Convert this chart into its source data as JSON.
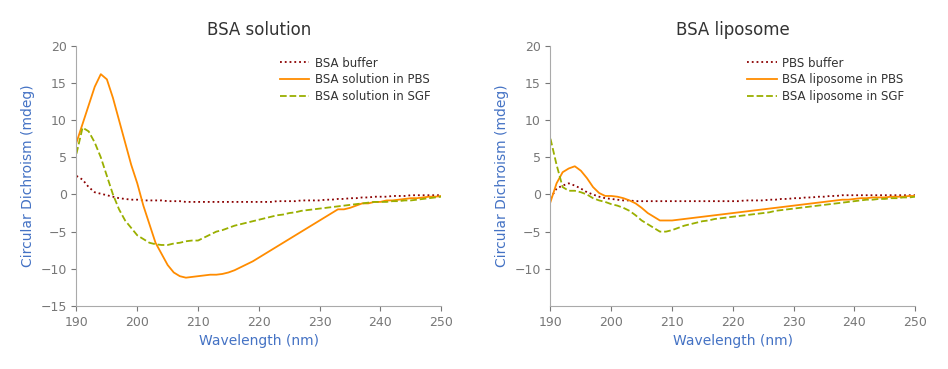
{
  "left_title": "BSA solution",
  "right_title": "BSA liposome",
  "xlabel": "Wavelength (nm)",
  "ylabel": "Circular Dichroism (mdeg)",
  "xlim": [
    190,
    250
  ],
  "left_ylim": [
    -15,
    20
  ],
  "right_ylim": [
    -15,
    20
  ],
  "left_yticks": [
    -15,
    -10,
    -5,
    0,
    5,
    10,
    15,
    20
  ],
  "right_yticks": [
    -10,
    -5,
    0,
    5,
    10,
    15,
    20
  ],
  "xticks": [
    190,
    200,
    210,
    220,
    230,
    240,
    250
  ],
  "left_legend": [
    "BSA buffer",
    "BSA solution in PBS",
    "BSA solution in SGF"
  ],
  "right_legend": [
    "PBS buffer",
    "BSA liposome in PBS",
    "BSA liposome in SGF"
  ],
  "colors_dotted": "#8B0000",
  "colors_solid": "#FF8C00",
  "colors_dashed": "#9aaf00",
  "left_x": [
    190,
    191,
    192,
    193,
    194,
    195,
    196,
    197,
    198,
    199,
    200,
    201,
    202,
    203,
    204,
    205,
    206,
    207,
    208,
    209,
    210,
    211,
    212,
    213,
    214,
    215,
    216,
    217,
    218,
    219,
    220,
    221,
    222,
    223,
    224,
    225,
    226,
    227,
    228,
    229,
    230,
    231,
    232,
    233,
    234,
    235,
    236,
    237,
    238,
    239,
    240,
    241,
    242,
    243,
    244,
    245,
    246,
    247,
    248,
    249,
    250
  ],
  "left_buffer": [
    2.5,
    2.0,
    1.0,
    0.3,
    0.1,
    -0.1,
    -0.3,
    -0.5,
    -0.6,
    -0.7,
    -0.7,
    -0.8,
    -0.8,
    -0.8,
    -0.8,
    -0.9,
    -0.9,
    -0.9,
    -1.0,
    -1.0,
    -1.0,
    -1.0,
    -1.0,
    -1.0,
    -1.0,
    -1.0,
    -1.0,
    -1.0,
    -1.0,
    -1.0,
    -1.0,
    -1.0,
    -1.0,
    -0.9,
    -0.9,
    -0.9,
    -0.9,
    -0.8,
    -0.8,
    -0.8,
    -0.8,
    -0.7,
    -0.7,
    -0.6,
    -0.6,
    -0.5,
    -0.5,
    -0.4,
    -0.4,
    -0.3,
    -0.3,
    -0.3,
    -0.2,
    -0.2,
    -0.2,
    -0.1,
    -0.1,
    -0.1,
    -0.1,
    -0.1,
    -0.1
  ],
  "left_pbs": [
    7.0,
    9.5,
    12.0,
    14.5,
    16.2,
    15.5,
    13.0,
    10.0,
    7.0,
    4.0,
    1.5,
    -1.5,
    -4.0,
    -6.5,
    -8.0,
    -9.5,
    -10.5,
    -11.0,
    -11.2,
    -11.1,
    -11.0,
    -10.9,
    -10.8,
    -10.8,
    -10.7,
    -10.5,
    -10.2,
    -9.8,
    -9.4,
    -9.0,
    -8.5,
    -8.0,
    -7.5,
    -7.0,
    -6.5,
    -6.0,
    -5.5,
    -5.0,
    -4.5,
    -4.0,
    -3.5,
    -3.0,
    -2.5,
    -2.0,
    -2.0,
    -1.8,
    -1.5,
    -1.2,
    -1.2,
    -1.0,
    -1.0,
    -0.8,
    -0.8,
    -0.7,
    -0.6,
    -0.5,
    -0.5,
    -0.4,
    -0.3,
    -0.3,
    -0.2
  ],
  "left_sgf": [
    5.5,
    9.0,
    8.5,
    7.0,
    5.0,
    2.5,
    0.0,
    -2.0,
    -3.5,
    -4.5,
    -5.5,
    -6.0,
    -6.5,
    -6.7,
    -6.8,
    -6.8,
    -6.6,
    -6.5,
    -6.3,
    -6.2,
    -6.2,
    -5.8,
    -5.4,
    -5.0,
    -4.8,
    -4.5,
    -4.2,
    -4.0,
    -3.8,
    -3.6,
    -3.4,
    -3.2,
    -3.0,
    -2.8,
    -2.7,
    -2.5,
    -2.4,
    -2.2,
    -2.1,
    -2.0,
    -1.9,
    -1.8,
    -1.7,
    -1.6,
    -1.5,
    -1.4,
    -1.3,
    -1.2,
    -1.1,
    -1.0,
    -1.0,
    -1.0,
    -0.9,
    -0.9,
    -0.8,
    -0.8,
    -0.7,
    -0.6,
    -0.5,
    -0.4,
    -0.3
  ],
  "right_x": [
    190,
    191,
    192,
    193,
    194,
    195,
    196,
    197,
    198,
    199,
    200,
    201,
    202,
    203,
    204,
    205,
    206,
    207,
    208,
    209,
    210,
    211,
    212,
    213,
    214,
    215,
    216,
    217,
    218,
    219,
    220,
    221,
    222,
    223,
    224,
    225,
    226,
    227,
    228,
    229,
    230,
    231,
    232,
    233,
    234,
    235,
    236,
    237,
    238,
    239,
    240,
    241,
    242,
    243,
    244,
    245,
    246,
    247,
    248,
    249,
    250
  ],
  "right_buffer": [
    -0.5,
    0.8,
    1.2,
    1.5,
    1.2,
    0.8,
    0.3,
    0.0,
    -0.3,
    -0.5,
    -0.6,
    -0.7,
    -0.8,
    -0.8,
    -0.9,
    -0.9,
    -0.9,
    -0.9,
    -0.9,
    -0.9,
    -0.9,
    -0.9,
    -0.9,
    -0.9,
    -0.9,
    -0.9,
    -0.9,
    -0.9,
    -0.9,
    -0.9,
    -0.9,
    -0.9,
    -0.8,
    -0.8,
    -0.8,
    -0.8,
    -0.7,
    -0.7,
    -0.6,
    -0.6,
    -0.5,
    -0.5,
    -0.4,
    -0.4,
    -0.3,
    -0.3,
    -0.2,
    -0.2,
    -0.1,
    -0.1,
    -0.1,
    -0.1,
    -0.1,
    -0.1,
    -0.1,
    -0.1,
    -0.1,
    -0.1,
    -0.1,
    -0.1,
    -0.1
  ],
  "right_pbs": [
    -1.0,
    1.5,
    3.0,
    3.5,
    3.8,
    3.2,
    2.2,
    1.0,
    0.2,
    -0.2,
    -0.2,
    -0.3,
    -0.5,
    -0.8,
    -1.2,
    -1.8,
    -2.5,
    -3.0,
    -3.5,
    -3.5,
    -3.5,
    -3.4,
    -3.3,
    -3.2,
    -3.1,
    -3.0,
    -2.9,
    -2.8,
    -2.7,
    -2.6,
    -2.5,
    -2.4,
    -2.3,
    -2.2,
    -2.1,
    -2.0,
    -1.9,
    -1.8,
    -1.7,
    -1.6,
    -1.5,
    -1.4,
    -1.3,
    -1.2,
    -1.1,
    -1.0,
    -0.9,
    -0.8,
    -0.7,
    -0.7,
    -0.6,
    -0.5,
    -0.5,
    -0.4,
    -0.4,
    -0.4,
    -0.3,
    -0.3,
    -0.3,
    -0.2,
    -0.2
  ],
  "right_sgf": [
    7.5,
    4.0,
    1.0,
    0.5,
    0.5,
    0.3,
    0.0,
    -0.5,
    -0.8,
    -1.0,
    -1.3,
    -1.5,
    -1.8,
    -2.2,
    -2.8,
    -3.5,
    -4.0,
    -4.5,
    -5.0,
    -5.0,
    -4.8,
    -4.5,
    -4.2,
    -4.0,
    -3.8,
    -3.6,
    -3.5,
    -3.3,
    -3.2,
    -3.1,
    -3.0,
    -2.9,
    -2.8,
    -2.7,
    -2.6,
    -2.5,
    -2.4,
    -2.2,
    -2.1,
    -2.0,
    -1.9,
    -1.8,
    -1.7,
    -1.6,
    -1.5,
    -1.4,
    -1.3,
    -1.2,
    -1.1,
    -1.0,
    -0.9,
    -0.8,
    -0.7,
    -0.7,
    -0.6,
    -0.6,
    -0.5,
    -0.5,
    -0.4,
    -0.4,
    -0.3
  ]
}
